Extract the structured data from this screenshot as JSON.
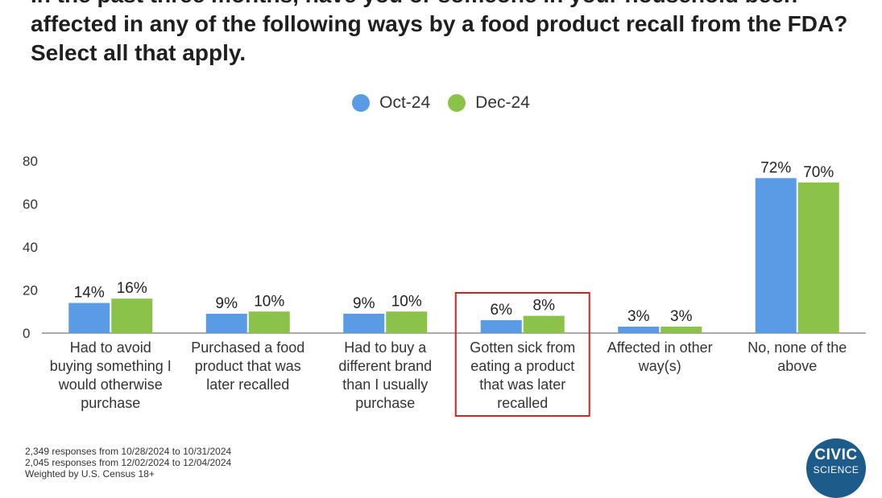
{
  "title": "In the past three months, have you or someone in your household been affected in any of the following ways by a food product recall from the FDA? Select all that apply.",
  "legend": [
    {
      "name": "Oct-24",
      "color": "#5a9be6"
    },
    {
      "name": "Dec-24",
      "color": "#8bc34a"
    }
  ],
  "chart_data": {
    "type": "bar",
    "title": "In the past three months, have you or someone in your household been affected in any of the following ways by a food product recall from the FDA? Select all that apply.",
    "categories": [
      [
        "Had to avoid",
        "buying something I",
        "would otherwise",
        "purchase"
      ],
      [
        "Purchased a food",
        "product that was",
        "later recalled"
      ],
      [
        "Had to buy a",
        "different brand",
        "than I usually",
        "purchase"
      ],
      [
        "Gotten sick from",
        "eating a product",
        "that was later",
        "recalled"
      ],
      [
        "Affected in other",
        "way(s)"
      ],
      [
        "No, none of the",
        "above"
      ]
    ],
    "series": [
      {
        "name": "Oct-24",
        "color": "#5a9be6",
        "values": [
          14,
          9,
          9,
          6,
          3,
          72
        ],
        "labels": [
          "14%",
          "9%",
          "9%",
          "6%",
          "3%",
          "72%"
        ]
      },
      {
        "name": "Dec-24",
        "color": "#8bc34a",
        "values": [
          16,
          10,
          10,
          8,
          3,
          70
        ],
        "labels": [
          "16%",
          "10%",
          "10%",
          "8%",
          "3%",
          "70%"
        ]
      }
    ],
    "yticks": [
      "0",
      "20",
      "40",
      "60",
      "80"
    ],
    "ylim": [
      0,
      85
    ],
    "grid": false,
    "legend_position": "top-center",
    "highlighted_category": 3,
    "highlight_color": "#c62828"
  },
  "footnote": [
    "2,349 responses from 10/28/2024 to 10/31/2024",
    "2,045 responses from 12/02/2024 to 12/04/2024",
    "Weighted by U.S. Census 18+"
  ],
  "logo": {
    "line1": "CIVIC",
    "line2": "SCIENCE"
  }
}
